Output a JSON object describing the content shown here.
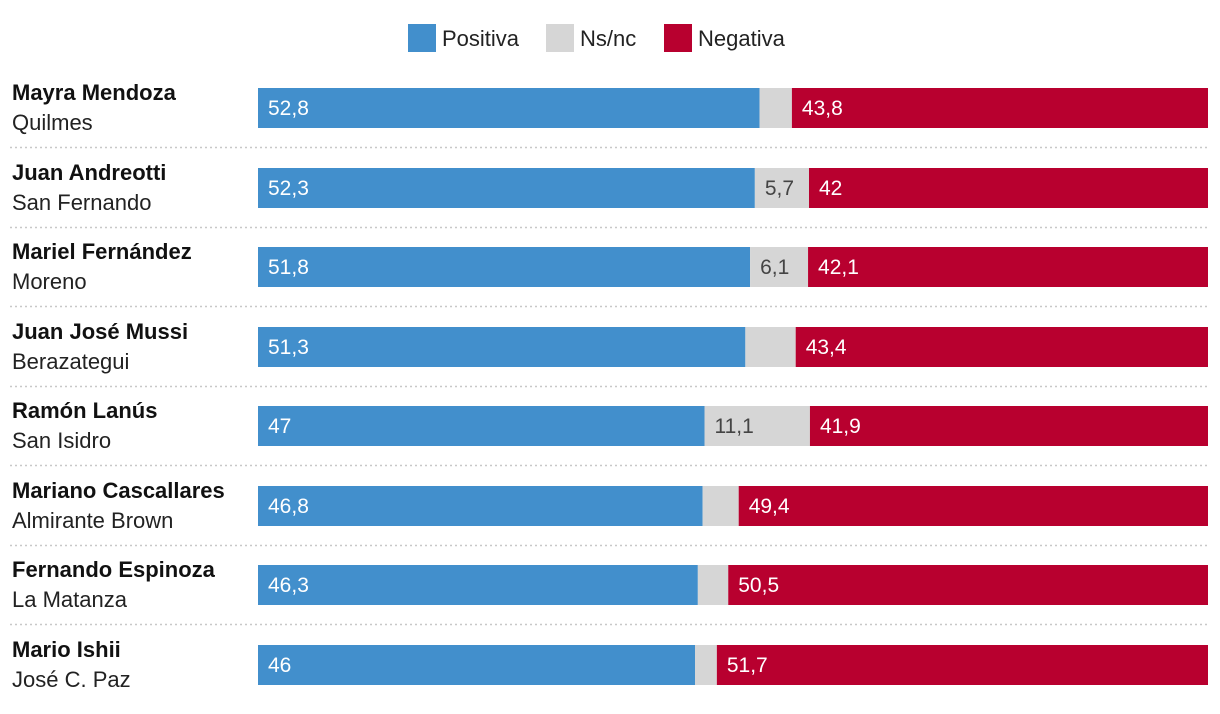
{
  "chart_data": {
    "type": "bar",
    "orientation": "horizontal",
    "stacked": true,
    "legend_position": "top-center",
    "legend": [
      {
        "key": "positiva",
        "label": "Positiva",
        "color": "#428fcc"
      },
      {
        "key": "nsnc",
        "label": "Ns/nc",
        "color": "#d6d6d6"
      },
      {
        "key": "negativa",
        "label": "Negativa",
        "color": "#b8002f"
      }
    ],
    "rows": [
      {
        "name": "Mayra Mendoza",
        "place": "Quilmes",
        "positiva": 52.8,
        "nsnc": 3.4,
        "negativa": 43.8,
        "labels": {
          "positiva": "52,8",
          "nsnc": "",
          "negativa": "43,8"
        }
      },
      {
        "name": "Juan Andreotti",
        "place": "San Fernando",
        "positiva": 52.3,
        "nsnc": 5.7,
        "negativa": 42,
        "labels": {
          "positiva": "52,3",
          "nsnc": "5,7",
          "negativa": "42"
        }
      },
      {
        "name": "Mariel Fernández",
        "place": "Moreno",
        "positiva": 51.8,
        "nsnc": 6.1,
        "negativa": 42.1,
        "labels": {
          "positiva": "51,8",
          "nsnc": "6,1",
          "negativa": "42,1"
        }
      },
      {
        "name": "Juan José Mussi",
        "place": "Berazategui",
        "positiva": 51.3,
        "nsnc": 5.3,
        "negativa": 43.4,
        "labels": {
          "positiva": "51,3",
          "nsnc": "",
          "negativa": "43,4"
        }
      },
      {
        "name": "Ramón Lanús",
        "place": "San Isidro",
        "positiva": 47,
        "nsnc": 11.1,
        "negativa": 41.9,
        "labels": {
          "positiva": "47",
          "nsnc": "11,1",
          "negativa": "41,9"
        }
      },
      {
        "name": "Mariano Cascallares",
        "place": "Almirante Brown",
        "positiva": 46.8,
        "nsnc": 3.8,
        "negativa": 49.4,
        "labels": {
          "positiva": "46,8",
          "nsnc": "",
          "negativa": "49,4"
        }
      },
      {
        "name": "Fernando Espinoza",
        "place": "La Matanza",
        "positiva": 46.3,
        "nsnc": 3.2,
        "negativa": 50.5,
        "labels": {
          "positiva": "46,3",
          "nsnc": "",
          "negativa": "50,5"
        }
      },
      {
        "name": "Mario Ishii",
        "place": "José C. Paz",
        "positiva": 46,
        "nsnc": 2.3,
        "negativa": 51.7,
        "labels": {
          "positiva": "46",
          "nsnc": "",
          "negativa": "51,7"
        }
      }
    ],
    "xlim": [
      0,
      100
    ],
    "title": "",
    "xlabel": "",
    "ylabel": ""
  }
}
